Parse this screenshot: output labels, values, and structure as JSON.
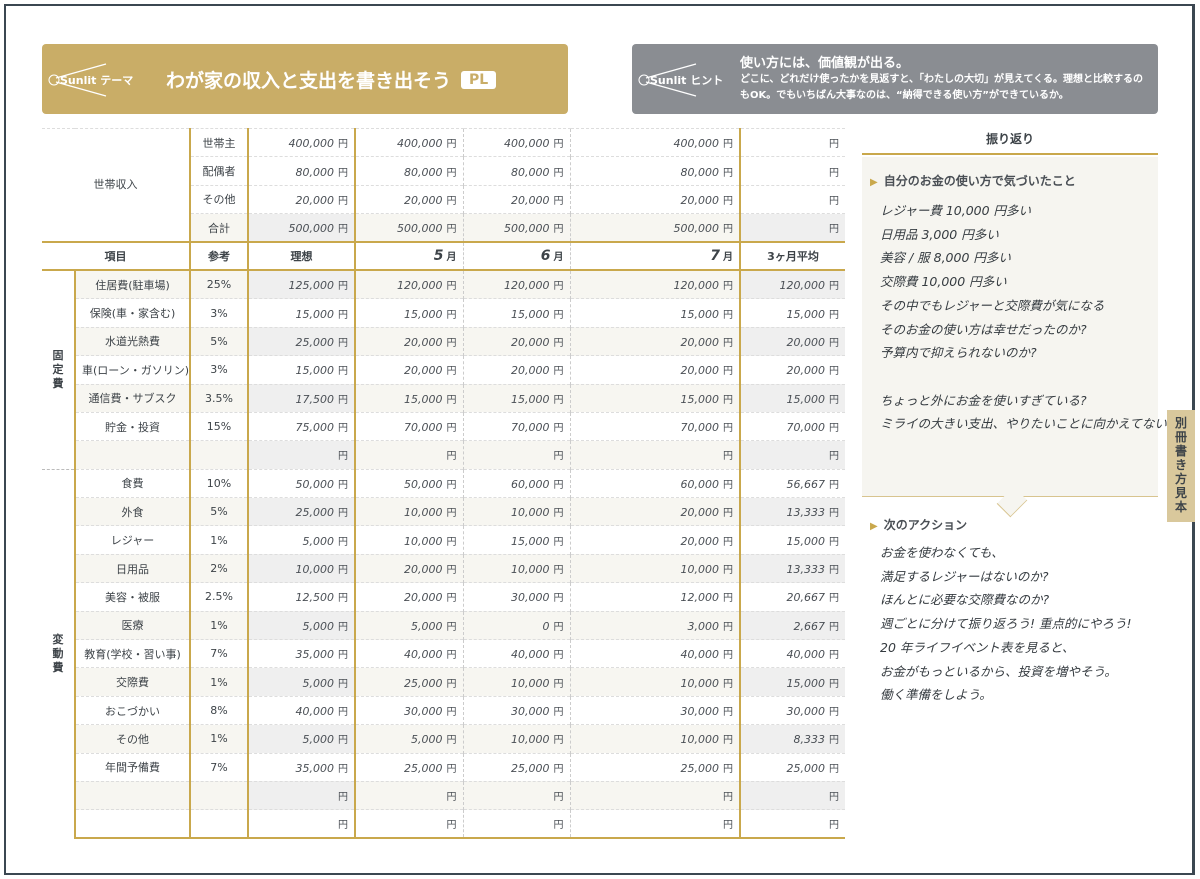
{
  "theme": {
    "logo": "Sunlit テーマ",
    "title": "わが家の収入と支出を書き出そう",
    "badge": "PL"
  },
  "hint": {
    "logo": "Sunlit ヒント",
    "title": "使い方には、価値観が出る。",
    "body": "どこに、どれだけ使ったかを見返すと、「わたしの大切」が見えてくる。理想と比較するのもOK。でもいちばん大事なのは、“納得できる使い方”ができているか。"
  },
  "yen": "円",
  "income": {
    "label": "世帯収入",
    "rows": [
      {
        "name": "世帯主",
        "ideal": "400,000",
        "m5": "400,000",
        "m6": "400,000",
        "m7": "400,000",
        "avg": ""
      },
      {
        "name": "配偶者",
        "ideal": "80,000",
        "m5": "80,000",
        "m6": "80,000",
        "m7": "80,000",
        "avg": ""
      },
      {
        "name": "その他",
        "ideal": "20,000",
        "m5": "20,000",
        "m6": "20,000",
        "m7": "20,000",
        "avg": ""
      },
      {
        "name": "合計",
        "ideal": "500,000",
        "m5": "500,000",
        "m6": "500,000",
        "m7": "500,000",
        "avg": ""
      }
    ]
  },
  "header": {
    "item": "項目",
    "ref": "参考",
    "ideal": "理想",
    "m5": "5",
    "m6": "6",
    "m7": "7",
    "month_unit": "月",
    "avg": "3ヶ月平均"
  },
  "fixed": {
    "label": "固定費",
    "rows": [
      {
        "name": "住居費(駐車場)",
        "ref": "25%",
        "ideal": "125,000",
        "m5": "120,000",
        "m6": "120,000",
        "m7": "120,000",
        "avg": "120,000"
      },
      {
        "name": "保険(車・家含む)",
        "ref": "3%",
        "ideal": "15,000",
        "m5": "15,000",
        "m6": "15,000",
        "m7": "15,000",
        "avg": "15,000"
      },
      {
        "name": "水道光熱費",
        "ref": "5%",
        "ideal": "25,000",
        "m5": "20,000",
        "m6": "20,000",
        "m7": "20,000",
        "avg": "20,000"
      },
      {
        "name": "車(ローン・ガソリン)",
        "ref": "3%",
        "ideal": "15,000",
        "m5": "20,000",
        "m6": "20,000",
        "m7": "20,000",
        "avg": "20,000"
      },
      {
        "name": "通信費・サブスク",
        "ref": "3.5%",
        "ideal": "17,500",
        "m5": "15,000",
        "m6": "15,000",
        "m7": "15,000",
        "avg": "15,000"
      },
      {
        "name": "貯金・投資",
        "ref": "15%",
        "ideal": "75,000",
        "m5": "70,000",
        "m6": "70,000",
        "m7": "70,000",
        "avg": "70,000"
      },
      {
        "name": "",
        "ref": "",
        "ideal": "",
        "m5": "",
        "m6": "",
        "m7": "",
        "avg": ""
      }
    ]
  },
  "variable": {
    "label": "変動費",
    "rows": [
      {
        "name": "食費",
        "ref": "10%",
        "ideal": "50,000",
        "m5": "50,000",
        "m6": "60,000",
        "m7": "60,000",
        "avg": "56,667"
      },
      {
        "name": "外食",
        "ref": "5%",
        "ideal": "25,000",
        "m5": "10,000",
        "m6": "10,000",
        "m7": "20,000",
        "avg": "13,333"
      },
      {
        "name": "レジャー",
        "ref": "1%",
        "ideal": "5,000",
        "m5": "10,000",
        "m6": "15,000",
        "m7": "20,000",
        "avg": "15,000"
      },
      {
        "name": "日用品",
        "ref": "2%",
        "ideal": "10,000",
        "m5": "20,000",
        "m6": "10,000",
        "m7": "10,000",
        "avg": "13,333"
      },
      {
        "name": "美容・被服",
        "ref": "2.5%",
        "ideal": "12,500",
        "m5": "20,000",
        "m6": "30,000",
        "m7": "12,000",
        "avg": "20,667"
      },
      {
        "name": "医療",
        "ref": "1%",
        "ideal": "5,000",
        "m5": "5,000",
        "m6": "0",
        "m7": "3,000",
        "avg": "2,667"
      },
      {
        "name": "教育(学校・習い事)",
        "ref": "7%",
        "ideal": "35,000",
        "m5": "40,000",
        "m6": "40,000",
        "m7": "40,000",
        "avg": "40,000"
      },
      {
        "name": "交際費",
        "ref": "1%",
        "ideal": "5,000",
        "m5": "25,000",
        "m6": "10,000",
        "m7": "10,000",
        "avg": "15,000"
      },
      {
        "name": "おこづかい",
        "ref": "8%",
        "ideal": "40,000",
        "m5": "30,000",
        "m6": "30,000",
        "m7": "30,000",
        "avg": "30,000"
      },
      {
        "name": "その他",
        "ref": "1%",
        "ideal": "5,000",
        "m5": "5,000",
        "m6": "10,000",
        "m7": "10,000",
        "avg": "8,333"
      },
      {
        "name": "年間予備費",
        "ref": "7%",
        "ideal": "35,000",
        "m5": "25,000",
        "m6": "25,000",
        "m7": "25,000",
        "avg": "25,000"
      },
      {
        "name": "",
        "ref": "",
        "ideal": "",
        "m5": "",
        "m6": "",
        "m7": "",
        "avg": ""
      },
      {
        "name": "",
        "ref": "",
        "ideal": "",
        "m5": "",
        "m6": "",
        "m7": "",
        "avg": ""
      }
    ]
  },
  "review": {
    "title": "振り返り",
    "notice_heading": "自分のお金の使い方で気づいたこと",
    "notice_lines": [
      "レジャー費 10,000 円多い",
      "日用品 3,000 円多い",
      "美容 / 服 8,000 円多い",
      "交際費 10,000 円多い",
      "その中でもレジャーと交際費が気になる",
      "そのお金の使い方は幸せだったのか?",
      "予算内で抑えられないのか?",
      "",
      "ちょっと外にお金を使いすぎている?",
      "ミライの大きい支出、やりたいことに向かえてない"
    ],
    "action_heading": "次のアクション",
    "action_lines": [
      "お金を使わなくても、",
      "満足するレジャーはないのか?",
      "ほんとに必要な交際費なのか?",
      "週ごとに分けて振り返ろう! 重点的にやろう!",
      "20 年ライフイベント表を見ると、",
      "お金がもっといるから、投資を増やそう。",
      "働く準備をしよう。"
    ]
  },
  "side_tab": "別冊書き方見本",
  "colors": {
    "gold": "#c9ad67",
    "gray": "#8a8d92",
    "line": "#c9a84c",
    "tab": "#d9c89c"
  }
}
